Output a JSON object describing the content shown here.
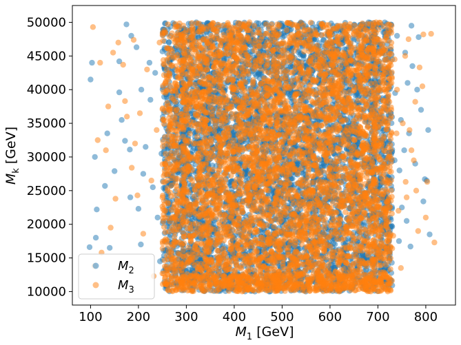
{
  "chart_data": {
    "type": "scatter",
    "title": "",
    "xlabel": {
      "main": "M",
      "sub": "1",
      "unit": " [GeV]"
    },
    "ylabel": {
      "main": "M",
      "sub": "k",
      "unit": " [GeV]"
    },
    "xlim": [
      62,
      862
    ],
    "ylim": [
      8000,
      52500
    ],
    "xticks": [
      100,
      200,
      300,
      400,
      500,
      600,
      700,
      800
    ],
    "yticks": [
      10000,
      15000,
      20000,
      25000,
      30000,
      35000,
      40000,
      45000,
      50000
    ],
    "grid": false,
    "legend_position": "lower-left",
    "series": [
      {
        "name": {
          "main": "M",
          "sub": "2"
        },
        "color": "#1f77b4",
        "alpha": 0.5,
        "points": [
          [
            103,
            44000
          ],
          [
            100,
            41500
          ],
          [
            98,
            16600
          ],
          [
            111,
            18000
          ],
          [
            113,
            22200
          ],
          [
            109,
            30000
          ],
          [
            135,
            33500
          ],
          [
            140,
            16500
          ],
          [
            160,
            44200
          ],
          [
            160,
            39600
          ],
          [
            175,
            49700
          ],
          [
            165,
            35500
          ],
          [
            172,
            32400
          ],
          [
            183,
            24000
          ],
          [
            182,
            31100
          ],
          [
            196,
            46300
          ],
          [
            200,
            22300
          ],
          [
            206,
            40000
          ],
          [
            210,
            27500
          ],
          [
            223,
            44000
          ],
          [
            225,
            38500
          ],
          [
            230,
            25500
          ],
          [
            240,
            21000
          ],
          [
            245,
            14500
          ],
          [
            252,
            48500
          ],
          [
            255,
            33000
          ],
          [
            262,
            43000
          ],
          [
            265,
            19500
          ],
          [
            270,
            27000
          ],
          [
            276,
            37000
          ],
          [
            282,
            11000
          ],
          [
            285,
            46000
          ],
          [
            150,
            27900
          ],
          [
            130,
            25700
          ],
          [
            185,
            48000
          ],
          [
            205,
            17000
          ],
          [
            215,
            31500
          ],
          [
            235,
            42500
          ],
          [
            248,
            30500
          ],
          [
            258,
            23500
          ],
          [
            720,
            37500
          ],
          [
            740,
            48000
          ],
          [
            745,
            28000
          ],
          [
            755,
            31000
          ],
          [
            760,
            20500
          ],
          [
            762,
            41000
          ],
          [
            768,
            16700
          ],
          [
            772,
            43500
          ],
          [
            778,
            29000
          ],
          [
            785,
            47800
          ],
          [
            795,
            23400
          ],
          [
            802,
            26500
          ],
          [
            808,
            18500
          ],
          [
            712,
            24000
          ],
          [
            730,
            44500
          ],
          [
            748,
            35500
          ],
          [
            705,
            13000
          ],
          [
            725,
            15500
          ],
          [
            736,
            39500
          ],
          [
            750,
            22500
          ],
          [
            765,
            33500
          ],
          [
            790,
            37000
          ],
          [
            700,
            47000
          ],
          [
            735,
            29500
          ],
          [
            757,
            45500
          ],
          [
            715,
            19500
          ],
          [
            782,
            40000
          ],
          [
            798,
            26700
          ],
          [
            805,
            34000
          ],
          [
            720,
            11000
          ],
          [
            744,
            17500
          ],
          [
            770,
            49500
          ]
        ]
      },
      {
        "name": {
          "main": "M",
          "sub": "3"
        },
        "color": "#ff7f0e",
        "alpha": 0.5,
        "points": [
          [
            105,
            49300
          ],
          [
            108,
            13800
          ],
          [
            115,
            32500
          ],
          [
            120,
            44000
          ],
          [
            132,
            31000
          ],
          [
            147,
            45500
          ],
          [
            152,
            23800
          ],
          [
            158,
            47000
          ],
          [
            168,
            43700
          ],
          [
            172,
            38300
          ],
          [
            176,
            36000
          ],
          [
            190,
            47400
          ],
          [
            193,
            32000
          ],
          [
            203,
            36500
          ],
          [
            210,
            18600
          ],
          [
            218,
            43000
          ],
          [
            227,
            26500
          ],
          [
            238,
            34000
          ],
          [
            250,
            12700
          ],
          [
            262,
            41500
          ],
          [
            272,
            33000
          ],
          [
            283,
            21500
          ],
          [
            142,
            19500
          ],
          [
            137,
            37500
          ],
          [
            123,
            15800
          ],
          [
            186,
            28400
          ],
          [
            198,
            24300
          ],
          [
            232,
            12300
          ],
          [
            244,
            47000
          ],
          [
            256,
            29000
          ],
          [
            268,
            16000
          ],
          [
            279,
            40500
          ],
          [
            712,
            41000
          ],
          [
            722,
            30000
          ],
          [
            735,
            44500
          ],
          [
            743,
            22000
          ],
          [
            752,
            35000
          ],
          [
            758,
            26300
          ],
          [
            764,
            47500
          ],
          [
            770,
            31000
          ],
          [
            778,
            38200
          ],
          [
            787,
            43300
          ],
          [
            795,
            48200
          ],
          [
            803,
            26300
          ],
          [
            811,
            48300
          ],
          [
            818,
            17300
          ],
          [
            732,
            18300
          ],
          [
            748,
            13500
          ],
          [
            760,
            24000
          ],
          [
            775,
            29500
          ],
          [
            784,
            19000
          ],
          [
            705,
            11500
          ],
          [
            718,
            16500
          ],
          [
            728,
            37000
          ],
          [
            740,
            40000
          ],
          [
            757,
            45000
          ],
          [
            766,
            34000
          ],
          [
            780,
            25000
          ],
          [
            793,
            40500
          ],
          [
            800,
            21000
          ],
          [
            739,
            33500
          ],
          [
            708,
            27000
          ]
        ]
      }
    ]
  },
  "plot": {
    "area": {
      "x0": 105,
      "y0": 8,
      "x1": 661,
      "y1": 443
    },
    "seed": 20240613,
    "dense_per_series": 5200,
    "dense_center_spread": {
      "x_min": 270,
      "x_max": 710,
      "y_min": 10000,
      "y_max": 50000
    }
  }
}
